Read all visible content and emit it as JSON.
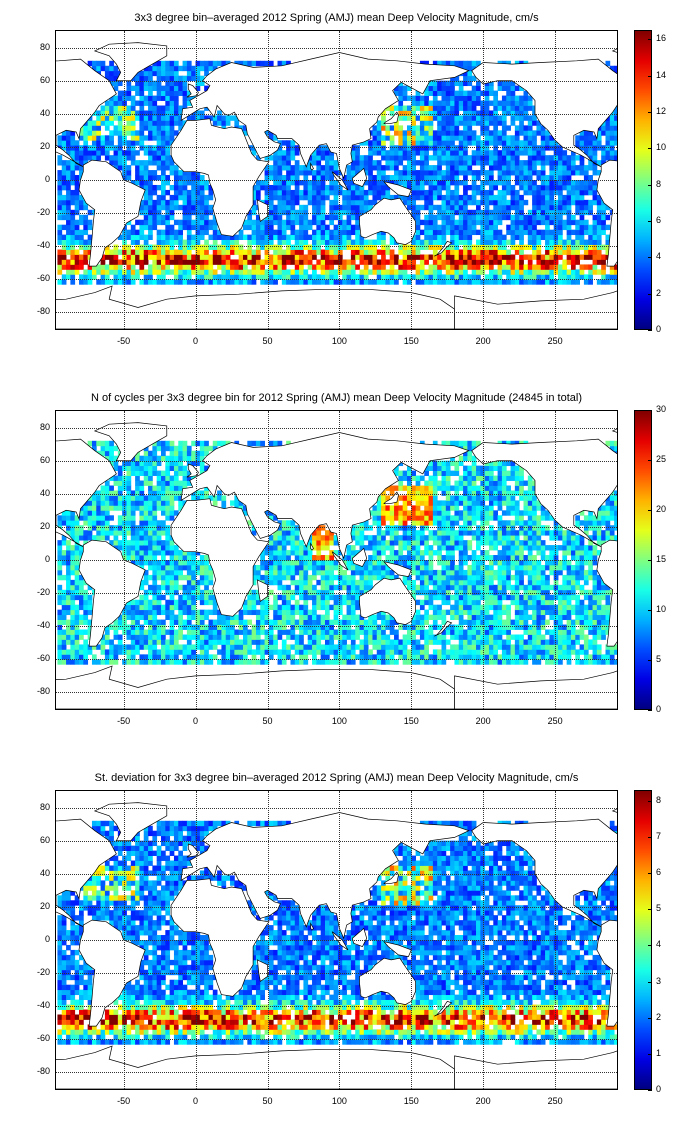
{
  "colors": {
    "colormap": "jet",
    "land": "#ffffff",
    "coastline": "#000000",
    "grid": "#333333",
    "background": "#ffffff"
  },
  "chart_data": [
    {
      "type": "heatmap",
      "title": "3x3 degree bin–averaged 2012 Spring (AMJ) mean Deep Velocity Magnitude, cm/s",
      "xlabel": "",
      "ylabel": "",
      "xlim": [
        -97,
        293
      ],
      "ylim": [
        -90,
        90
      ],
      "x_ticks": [
        -50,
        0,
        50,
        100,
        150,
        200,
        250
      ],
      "y_ticks": [
        80,
        60,
        40,
        20,
        0,
        -20,
        -40,
        -60,
        -80
      ],
      "colorbar": {
        "min": 0,
        "max": 16.5,
        "ticks": [
          0,
          2,
          4,
          6,
          8,
          10,
          12,
          14,
          16
        ]
      },
      "grid": true,
      "bin_size_deg": 3
    },
    {
      "type": "heatmap",
      "title": "N of cycles per 3x3 degree bin for 2012 Spring (AMJ) mean Deep Velocity Magnitude (24845 in total)",
      "xlabel": "",
      "ylabel": "",
      "xlim": [
        -97,
        293
      ],
      "ylim": [
        -90,
        90
      ],
      "x_ticks": [
        -50,
        0,
        50,
        100,
        150,
        200,
        250
      ],
      "y_ticks": [
        80,
        60,
        40,
        20,
        0,
        -20,
        -40,
        -60,
        -80
      ],
      "colorbar": {
        "min": 0,
        "max": 30,
        "ticks": [
          0,
          5,
          10,
          15,
          20,
          25,
          30
        ]
      },
      "grid": true,
      "bin_size_deg": 3,
      "total_count": 24845
    },
    {
      "type": "heatmap",
      "title": "St. deviation for 3x3 degree bin–averaged 2012 Spring (AMJ) mean Deep Velocity Magnitude, cm/s",
      "xlabel": "",
      "ylabel": "",
      "xlim": [
        -97,
        293
      ],
      "ylim": [
        -90,
        90
      ],
      "x_ticks": [
        -50,
        0,
        50,
        100,
        150,
        200,
        250
      ],
      "y_ticks": [
        80,
        60,
        40,
        20,
        0,
        -20,
        -40,
        -60,
        -80
      ],
      "colorbar": {
        "min": 0,
        "max": 8.3,
        "ticks": [
          0,
          1,
          2,
          3,
          4,
          5,
          6,
          7,
          8
        ]
      },
      "grid": true,
      "bin_size_deg": 3
    }
  ]
}
